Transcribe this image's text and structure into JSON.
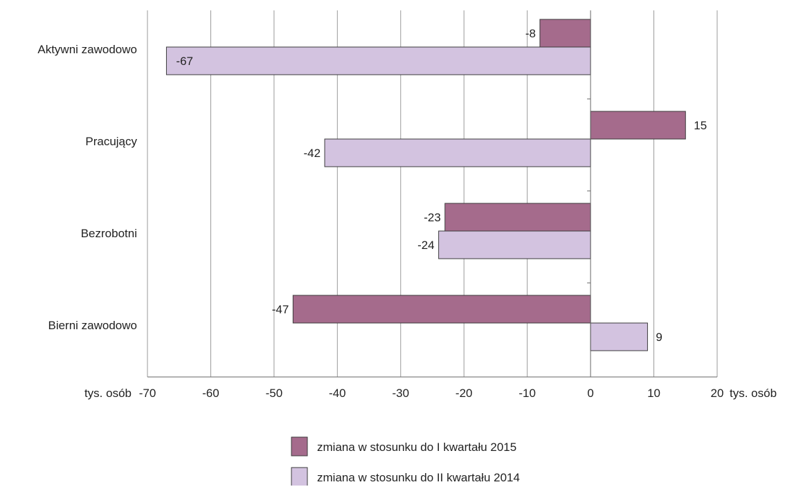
{
  "chart_data": {
    "type": "bar",
    "orientation": "horizontal",
    "categories": [
      "Aktywni zawodowo",
      "Pracujący",
      "Bezrobotni",
      "Bierni zawodowo"
    ],
    "series": [
      {
        "name": "zmiana w stosunku do I kwartału 2015",
        "color": "#a56b8c",
        "values": [
          -8,
          15,
          -23,
          -47
        ]
      },
      {
        "name": "zmiana w stosunku do II kwartału 2014",
        "color": "#d3c3e0",
        "values": [
          -67,
          -42,
          -24,
          9
        ]
      }
    ],
    "xlim": [
      -70,
      20
    ],
    "xticks": [
      -70,
      -60,
      -50,
      -40,
      -30,
      -20,
      -10,
      0,
      10,
      20
    ],
    "xlabel_left": "tys. osób",
    "xlabel_right": "tys. osób",
    "grid": "vertical",
    "legend_position": "bottom-center"
  }
}
